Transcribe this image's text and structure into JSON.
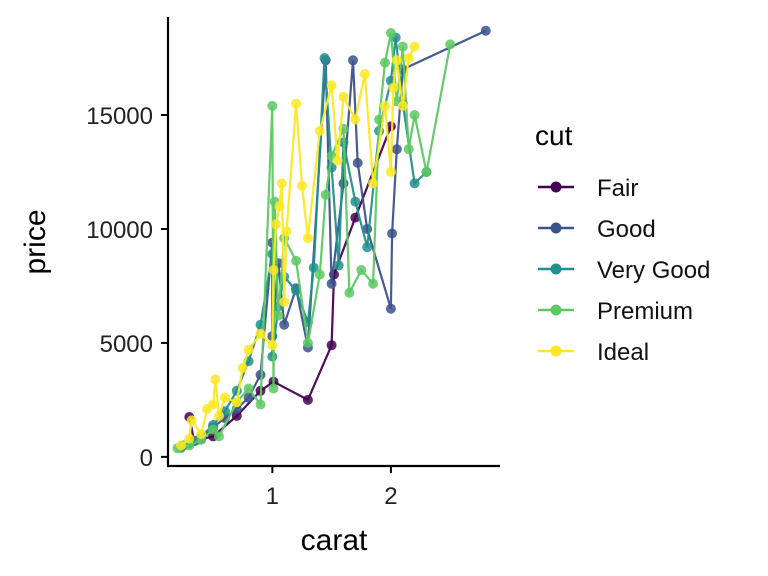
{
  "chart_data": {
    "type": "line",
    "xlabel": "carat",
    "ylabel": "price",
    "xlim": [
      0.12,
      2.92
    ],
    "ylim": [
      -400,
      19300
    ],
    "x_ticks": [
      1,
      2
    ],
    "y_ticks": [
      0,
      5000,
      10000,
      15000
    ],
    "grid": false,
    "legend": {
      "title": "cut",
      "placement": "right"
    },
    "series": [
      {
        "name": "Fair",
        "color": "#440154",
        "points": [
          [
            0.3,
            1750
          ],
          [
            0.34,
            700
          ],
          [
            0.5,
            900
          ],
          [
            0.7,
            1800
          ],
          [
            0.9,
            2900
          ],
          [
            1.01,
            3300
          ],
          [
            1.3,
            2500
          ],
          [
            1.5,
            4900
          ],
          [
            1.52,
            8000
          ],
          [
            1.7,
            10500
          ],
          [
            2.0,
            14500
          ]
        ]
      },
      {
        "name": "Good",
        "color": "#3B528B",
        "points": [
          [
            0.25,
            500
          ],
          [
            0.3,
            600
          ],
          [
            0.4,
            800
          ],
          [
            0.5,
            1300
          ],
          [
            0.6,
            1700
          ],
          [
            0.7,
            2100
          ],
          [
            0.8,
            2600
          ],
          [
            0.9,
            3600
          ],
          [
            1.0,
            9400
          ],
          [
            1.0,
            5300
          ],
          [
            1.05,
            8500
          ],
          [
            1.1,
            5800
          ],
          [
            1.2,
            7400
          ],
          [
            1.3,
            4800
          ],
          [
            1.45,
            17400
          ],
          [
            1.5,
            7600
          ],
          [
            1.6,
            12000
          ],
          [
            1.68,
            17400
          ],
          [
            1.72,
            12900
          ],
          [
            1.8,
            10000
          ],
          [
            2.0,
            6500
          ],
          [
            2.01,
            9800
          ],
          [
            2.05,
            13500
          ],
          [
            2.1,
            17000
          ],
          [
            2.8,
            18700
          ]
        ]
      },
      {
        "name": "Very Good",
        "color": "#21908C",
        "points": [
          [
            0.23,
            400
          ],
          [
            0.3,
            600
          ],
          [
            0.35,
            700
          ],
          [
            0.4,
            900
          ],
          [
            0.5,
            1400
          ],
          [
            0.6,
            2000
          ],
          [
            0.7,
            2900
          ],
          [
            0.8,
            4200
          ],
          [
            0.9,
            5800
          ],
          [
            1.0,
            8900
          ],
          [
            1.0,
            4400
          ],
          [
            1.05,
            6600
          ],
          [
            1.1,
            7900
          ],
          [
            1.2,
            7300
          ],
          [
            1.3,
            5900
          ],
          [
            1.35,
            8300
          ],
          [
            1.44,
            17500
          ],
          [
            1.5,
            12700
          ],
          [
            1.56,
            8400
          ],
          [
            1.6,
            13800
          ],
          [
            1.7,
            11200
          ],
          [
            1.8,
            9200
          ],
          [
            1.9,
            14300
          ],
          [
            2.0,
            16500
          ],
          [
            2.04,
            18400
          ],
          [
            2.1,
            15500
          ],
          [
            2.2,
            12000
          ],
          [
            2.3,
            12500
          ]
        ]
      },
      {
        "name": "Premium",
        "color": "#5DC863",
        "points": [
          [
            0.2,
            380
          ],
          [
            0.3,
            500
          ],
          [
            0.4,
            750
          ],
          [
            0.5,
            1200
          ],
          [
            0.55,
            900
          ],
          [
            0.7,
            2400
          ],
          [
            0.8,
            3000
          ],
          [
            0.9,
            2300
          ],
          [
            1.0,
            15400
          ],
          [
            1.01,
            3000
          ],
          [
            1.02,
            11200
          ],
          [
            1.05,
            6200
          ],
          [
            1.1,
            9600
          ],
          [
            1.2,
            8600
          ],
          [
            1.3,
            5000
          ],
          [
            1.4,
            8000
          ],
          [
            1.45,
            11500
          ],
          [
            1.5,
            13200
          ],
          [
            1.6,
            14400
          ],
          [
            1.65,
            7200
          ],
          [
            1.75,
            8200
          ],
          [
            1.85,
            7600
          ],
          [
            1.9,
            14800
          ],
          [
            1.95,
            17300
          ],
          [
            2.0,
            18600
          ],
          [
            2.05,
            15600
          ],
          [
            2.1,
            18000
          ],
          [
            2.15,
            13500
          ],
          [
            2.2,
            15000
          ],
          [
            2.3,
            12500
          ],
          [
            2.5,
            18100
          ]
        ]
      },
      {
        "name": "Ideal",
        "color": "#FDE725",
        "points": [
          [
            0.23,
            500
          ],
          [
            0.3,
            800
          ],
          [
            0.32,
            1600
          ],
          [
            0.4,
            1000
          ],
          [
            0.45,
            2100
          ],
          [
            0.5,
            2300
          ],
          [
            0.52,
            3400
          ],
          [
            0.55,
            1800
          ],
          [
            0.6,
            2600
          ],
          [
            0.7,
            2400
          ],
          [
            0.75,
            3900
          ],
          [
            0.8,
            4700
          ],
          [
            0.9,
            5400
          ],
          [
            1.0,
            4900
          ],
          [
            1.01,
            8200
          ],
          [
            1.03,
            10200
          ],
          [
            1.06,
            11000
          ],
          [
            1.08,
            12000
          ],
          [
            1.1,
            6800
          ],
          [
            1.12,
            9900
          ],
          [
            1.2,
            15500
          ],
          [
            1.25,
            11900
          ],
          [
            1.3,
            9600
          ],
          [
            1.4,
            14300
          ],
          [
            1.5,
            16300
          ],
          [
            1.55,
            13000
          ],
          [
            1.6,
            15800
          ],
          [
            1.7,
            14800
          ],
          [
            1.78,
            16800
          ],
          [
            1.85,
            12000
          ],
          [
            1.95,
            15400
          ],
          [
            2.0,
            12500
          ],
          [
            2.02,
            16200
          ],
          [
            2.05,
            17400
          ],
          [
            2.1,
            15400
          ],
          [
            2.15,
            17500
          ],
          [
            2.2,
            18000
          ]
        ]
      }
    ]
  }
}
